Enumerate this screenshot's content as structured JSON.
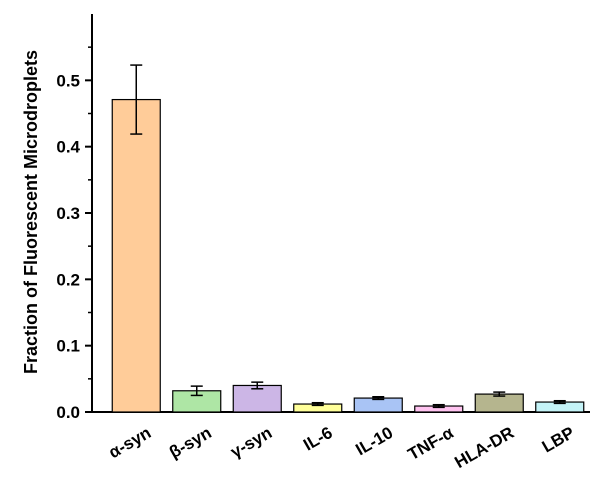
{
  "chart_data": {
    "type": "bar",
    "ylabel": "Fraction of Fluorescent Microdroplets",
    "xlabel": "",
    "ylim": [
      0,
      0.6
    ],
    "yticks": [
      0.0,
      0.1,
      0.2,
      0.3,
      0.4,
      0.5
    ],
    "ytick_labels": [
      "0.0",
      "0.1",
      "0.2",
      "0.3",
      "0.4",
      "0.5"
    ],
    "grid": false,
    "categories": [
      "α-syn",
      "β-syn",
      "γ-syn",
      "IL-6",
      "IL-10",
      "TNF-α",
      "HLA-DR",
      "LBP"
    ],
    "values": [
      0.471,
      0.032,
      0.04,
      0.012,
      0.021,
      0.009,
      0.027,
      0.015
    ],
    "errors": [
      0.052,
      0.007,
      0.005,
      0.002,
      0.002,
      0.002,
      0.003,
      0.002
    ],
    "colors": [
      "#ffcc99",
      "#aee6a5",
      "#ccb6e6",
      "#ffff99",
      "#a9c4f5",
      "#ffc3f0",
      "#b5b58e",
      "#c4f3f7"
    ]
  }
}
